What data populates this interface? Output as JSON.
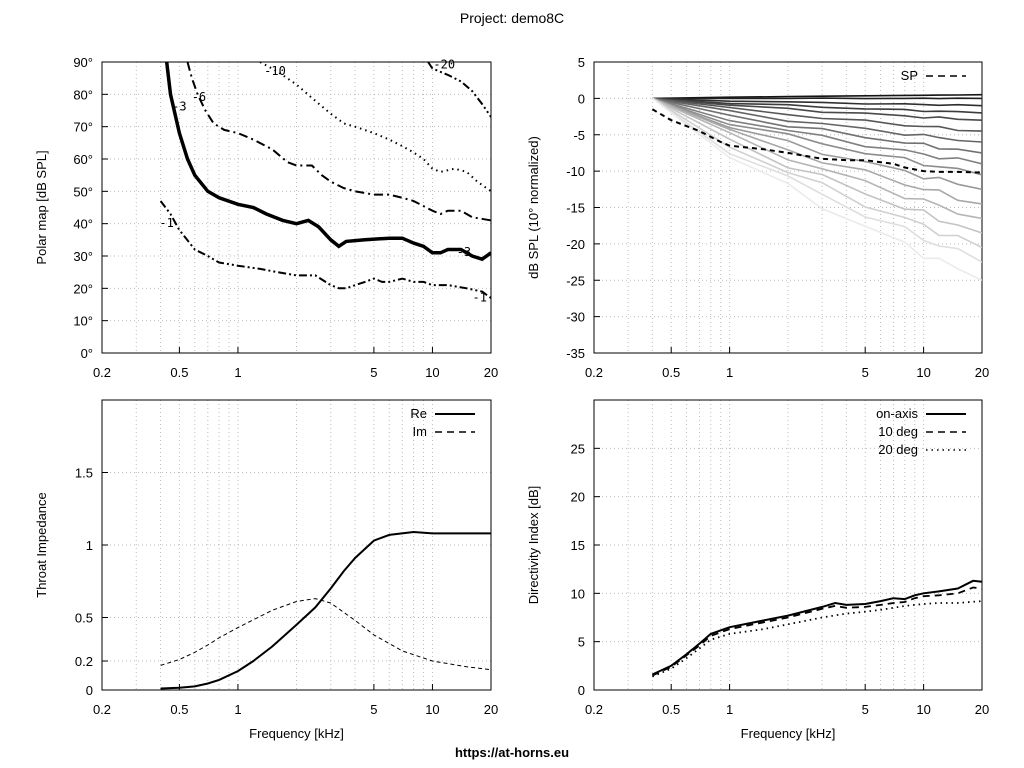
{
  "page_title": "Project: demo8C",
  "footer": "https://at-horns.eu",
  "chart_data": [
    {
      "id": "polar",
      "type": "contour",
      "ylabel": "Polar map [dB SPL]",
      "xlabel": "",
      "xscale": "log",
      "xlim": [
        0.2,
        20
      ],
      "ylim": [
        0,
        90
      ],
      "xticks": [
        0.2,
        0.5,
        1,
        5,
        10,
        20
      ],
      "xtick_labels": [
        "0.2",
        "0.5",
        "1",
        "5",
        "10",
        "20"
      ],
      "yticks": [
        0,
        10,
        20,
        30,
        40,
        50,
        60,
        70,
        80,
        90
      ],
      "ytick_labels": [
        "0°",
        "10°",
        "20°",
        "30°",
        "40°",
        "50°",
        "60°",
        "70°",
        "80°",
        "90°"
      ],
      "series": [
        {
          "level": "-1",
          "style": "dash-dot-dot",
          "points": [
            [
              0.4,
              47
            ],
            [
              0.45,
              43
            ],
            [
              0.5,
              38
            ],
            [
              0.6,
              32
            ],
            [
              0.7,
              30
            ],
            [
              0.8,
              28
            ],
            [
              1,
              27
            ],
            [
              1.3,
              26
            ],
            [
              1.6,
              25
            ],
            [
              2,
              24
            ],
            [
              2.5,
              24
            ],
            [
              3,
              21
            ],
            [
              3.3,
              20
            ],
            [
              3.6,
              20
            ],
            [
              4,
              21
            ],
            [
              4.5,
              22
            ],
            [
              5,
              23
            ],
            [
              5.5,
              22
            ],
            [
              6,
              22
            ],
            [
              7,
              23
            ],
            [
              8,
              22
            ],
            [
              9,
              22
            ],
            [
              10,
              21
            ],
            [
              12,
              21
            ],
            [
              15,
              20
            ],
            [
              18,
              19
            ],
            [
              20,
              17
            ]
          ]
        },
        {
          "level": "-3",
          "style": "solid-thick",
          "points": [
            [
              0.43,
              90
            ],
            [
              0.45,
              80
            ],
            [
              0.5,
              68
            ],
            [
              0.55,
              60
            ],
            [
              0.6,
              55
            ],
            [
              0.7,
              50
            ],
            [
              0.8,
              48
            ],
            [
              1,
              46
            ],
            [
              1.2,
              45
            ],
            [
              1.4,
              43
            ],
            [
              1.7,
              41
            ],
            [
              2,
              40
            ],
            [
              2.3,
              41
            ],
            [
              2.6,
              39
            ],
            [
              3,
              35
            ],
            [
              3.3,
              33
            ],
            [
              3.6,
              34.5
            ],
            [
              4.5,
              35
            ],
            [
              6,
              35.5
            ],
            [
              7,
              35.5
            ],
            [
              8,
              34
            ],
            [
              9,
              33
            ],
            [
              10,
              31
            ],
            [
              11,
              31
            ],
            [
              12,
              32
            ],
            [
              14,
              32
            ],
            [
              16,
              30
            ],
            [
              18,
              29
            ],
            [
              20,
              31
            ]
          ]
        },
        {
          "level": "-6",
          "style": "dash-dot",
          "points": [
            [
              0.55,
              90
            ],
            [
              0.58,
              85
            ],
            [
              0.62,
              80
            ],
            [
              0.68,
              75
            ],
            [
              0.75,
              71
            ],
            [
              0.85,
              69
            ],
            [
              1,
              68
            ],
            [
              1.2,
              66
            ],
            [
              1.5,
              63
            ],
            [
              1.8,
              59
            ],
            [
              2,
              58
            ],
            [
              2.4,
              58
            ],
            [
              2.7,
              55
            ],
            [
              3,
              53
            ],
            [
              3.5,
              51
            ],
            [
              4,
              50
            ],
            [
              5,
              49
            ],
            [
              6,
              49
            ],
            [
              7,
              48
            ],
            [
              8,
              47
            ],
            [
              10,
              44
            ],
            [
              11,
              43
            ],
            [
              12,
              44
            ],
            [
              14,
              44
            ],
            [
              16,
              42
            ],
            [
              20,
              41
            ]
          ]
        },
        {
          "level": "-10",
          "style": "dotted",
          "points": [
            [
              1.3,
              90
            ],
            [
              1.6,
              87
            ],
            [
              2,
              83
            ],
            [
              2.5,
              78
            ],
            [
              3,
              74
            ],
            [
              3.5,
              71
            ],
            [
              4,
              70
            ],
            [
              5,
              68
            ],
            [
              6,
              66
            ],
            [
              7,
              64
            ],
            [
              8,
              62
            ],
            [
              9,
              60
            ],
            [
              10,
              57
            ],
            [
              11,
              56
            ],
            [
              13,
              57
            ],
            [
              15,
              56
            ],
            [
              17,
              53
            ],
            [
              20,
              50
            ]
          ]
        },
        {
          "level": "-20",
          "style": "dash-dot-dot",
          "points": [
            [
              9.5,
              90
            ],
            [
              10,
              88
            ],
            [
              12,
              86
            ],
            [
              14,
              84
            ],
            [
              16,
              81
            ],
            [
              18,
              77
            ],
            [
              20,
              73
            ]
          ]
        }
      ],
      "contour_labels": [
        "-1",
        "-3",
        "-6",
        "-10",
        "-20",
        "-3",
        "-1"
      ]
    },
    {
      "id": "spl",
      "type": "line",
      "ylabel": "dB SPL (10° normalized)",
      "xlabel": "",
      "xscale": "log",
      "xlim": [
        0.2,
        20
      ],
      "ylim": [
        -35,
        5
      ],
      "xticks": [
        0.2,
        0.5,
        1,
        5,
        10,
        20
      ],
      "xtick_labels": [
        "0.2",
        "0.5",
        "1",
        "5",
        "10",
        "20"
      ],
      "yticks": [
        -35,
        -30,
        -25,
        -20,
        -15,
        -10,
        -5,
        0,
        5
      ],
      "ytick_labels": [
        "-35",
        "-30",
        "-25",
        "-20",
        "-15",
        "-10",
        "-5",
        "0",
        "5"
      ],
      "legend": {
        "position": "top-right",
        "entries": [
          {
            "name": "SP",
            "style": "dashed"
          }
        ]
      },
      "fan_freq": [
        0.4,
        1,
        2,
        3,
        5,
        8,
        10,
        12,
        15,
        20
      ],
      "fan_final": [
        0.5,
        0,
        -1,
        -2,
        -3,
        -4.5,
        -6,
        -7.5,
        -9,
        -10.5,
        -12.5,
        -14.5,
        -16.5,
        -18.5,
        -20.5,
        -22.5,
        -25
      ],
      "sp_series": {
        "name": "SP",
        "x": [
          0.4,
          0.5,
          0.7,
          0.9,
          1,
          1.5,
          2,
          3,
          4,
          5,
          7,
          8,
          10,
          12,
          15,
          20
        ],
        "y": [
          -1.5,
          -3,
          -4.5,
          -6,
          -6.5,
          -7,
          -7.5,
          -8.3,
          -8.5,
          -8.5,
          -9,
          -9.5,
          -10,
          -10.1,
          -10.1,
          -10.2
        ]
      }
    },
    {
      "id": "impedance",
      "type": "line",
      "ylabel": "Throat Impedance",
      "xlabel": "Frequency [kHz]",
      "xscale": "log",
      "xlim": [
        0.2,
        20
      ],
      "ylim": [
        0,
        2
      ],
      "xticks": [
        0.2,
        0.5,
        1,
        5,
        10,
        20
      ],
      "xtick_labels": [
        "0.2",
        "0.5",
        "1",
        "5",
        "10",
        "20"
      ],
      "yticks": [
        0,
        0.2,
        0.5,
        1,
        1.5
      ],
      "ytick_labels": [
        "0",
        "0.2",
        "0.5",
        "1",
        "1.5"
      ],
      "legend": {
        "position": "top-right",
        "entries": [
          {
            "name": "Re",
            "style": "solid"
          },
          {
            "name": "Im",
            "style": "dashed"
          }
        ]
      },
      "series": [
        {
          "name": "Re",
          "x": [
            0.4,
            0.5,
            0.6,
            0.7,
            0.8,
            1,
            1.2,
            1.5,
            2,
            2.5,
            3,
            3.5,
            4,
            5,
            6,
            8,
            10,
            15,
            20
          ],
          "y": [
            0.01,
            0.015,
            0.025,
            0.045,
            0.07,
            0.13,
            0.2,
            0.3,
            0.45,
            0.57,
            0.7,
            0.82,
            0.91,
            1.03,
            1.07,
            1.09,
            1.08,
            1.08,
            1.08
          ]
        },
        {
          "name": "Im",
          "x": [
            0.4,
            0.5,
            0.6,
            0.7,
            0.8,
            1,
            1.5,
            2,
            2.5,
            3,
            4,
            5,
            7,
            10,
            15,
            20
          ],
          "y": [
            0.17,
            0.21,
            0.26,
            0.31,
            0.36,
            0.43,
            0.55,
            0.61,
            0.63,
            0.6,
            0.48,
            0.38,
            0.27,
            0.2,
            0.16,
            0.14
          ]
        }
      ]
    },
    {
      "id": "di",
      "type": "line",
      "ylabel": "Directivity Index [dB]",
      "xlabel": "Frequency [kHz]",
      "xscale": "log",
      "xlim": [
        0.2,
        20
      ],
      "ylim": [
        0,
        30
      ],
      "xticks": [
        0.2,
        0.5,
        1,
        5,
        10,
        20
      ],
      "xtick_labels": [
        "0.2",
        "0.5",
        "1",
        "5",
        "10",
        "20"
      ],
      "yticks": [
        0,
        5,
        10,
        15,
        20,
        25
      ],
      "ytick_labels": [
        "0",
        "5",
        "10",
        "15",
        "20",
        "25"
      ],
      "legend": {
        "position": "top-right",
        "entries": [
          {
            "name": "on-axis",
            "style": "solid"
          },
          {
            "name": "10 deg",
            "style": "dashed"
          },
          {
            "name": "20 deg",
            "style": "dotted"
          }
        ]
      },
      "series": [
        {
          "name": "on-axis",
          "x": [
            0.4,
            0.5,
            0.6,
            0.7,
            0.8,
            1,
            1.5,
            2,
            3,
            3.5,
            4,
            5,
            6,
            7,
            8,
            9,
            10,
            12,
            15,
            18,
            20
          ],
          "y": [
            1.6,
            2.5,
            3.7,
            4.8,
            5.8,
            6.5,
            7.2,
            7.7,
            8.6,
            9,
            8.8,
            8.9,
            9.2,
            9.5,
            9.4,
            9.8,
            10,
            10.2,
            10.5,
            11.3,
            11.2
          ]
        },
        {
          "name": "10 deg",
          "x": [
            0.4,
            0.5,
            0.6,
            0.7,
            0.8,
            1,
            1.5,
            2,
            3,
            3.5,
            4,
            5,
            6,
            7,
            8,
            9,
            10,
            12,
            15,
            18,
            20
          ],
          "y": [
            1.5,
            2.4,
            3.6,
            4.6,
            5.6,
            6.3,
            7,
            7.5,
            8.4,
            8.7,
            8.5,
            8.6,
            8.8,
            9,
            9.1,
            9.5,
            9.7,
            9.8,
            10,
            10.6,
            10.5
          ]
        },
        {
          "name": "20 deg",
          "x": [
            0.4,
            0.5,
            0.6,
            0.7,
            0.8,
            1,
            1.5,
            2,
            3,
            4,
            5,
            6,
            7,
            8,
            10,
            12,
            15,
            20
          ],
          "y": [
            1.4,
            2.2,
            3.3,
            4.3,
            5.2,
            5.8,
            6.3,
            6.8,
            7.5,
            7.9,
            8.1,
            8.3,
            8.5,
            8.7,
            8.9,
            9,
            9,
            9.2
          ]
        }
      ]
    }
  ]
}
